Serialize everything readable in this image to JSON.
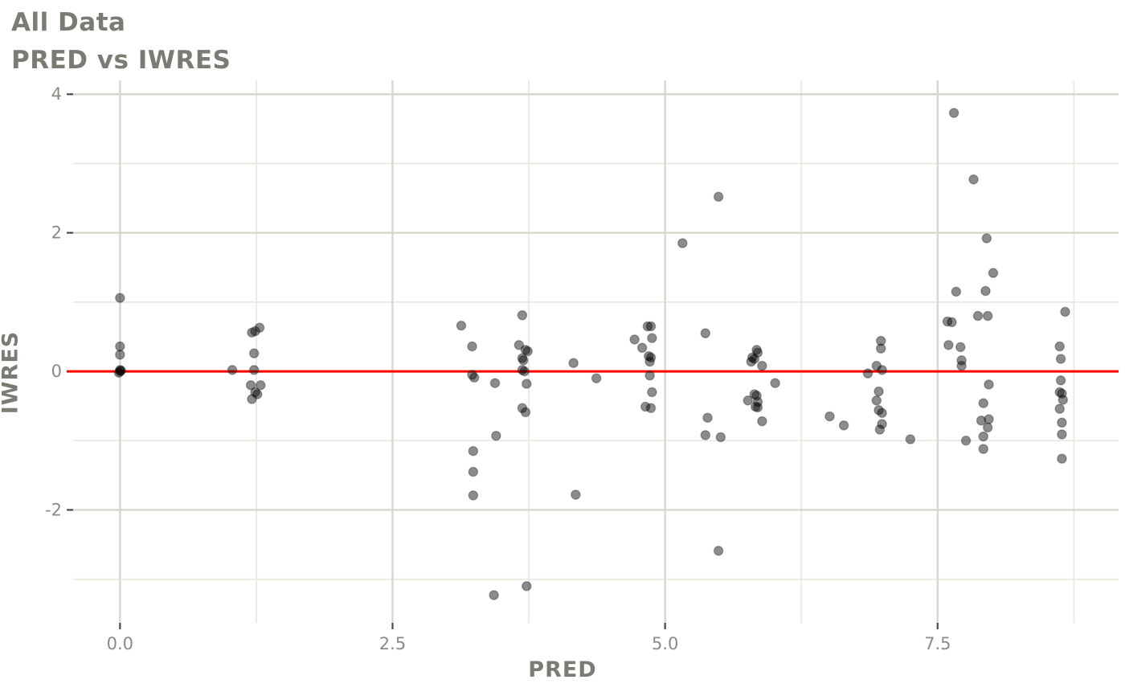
{
  "header": {
    "title": "All Data",
    "subtitle": "PRED vs IWRES"
  },
  "chart_data": {
    "type": "scatter",
    "title": "All Data",
    "subtitle": "PRED vs IWRES",
    "xlabel": "PRED",
    "ylabel": "IWRES",
    "legend": "none",
    "grid": true,
    "xlim": [
      -0.43,
      9.16
    ],
    "ylim": [
      -3.63,
      4.2
    ],
    "x_ticks": {
      "values": [
        0,
        2.5,
        5,
        7.5
      ],
      "labels": [
        "0.0",
        "2.5",
        "5.0",
        "7.5"
      ]
    },
    "y_ticks": {
      "values": [
        4,
        2,
        0,
        -2
      ],
      "labels": [
        "4",
        "2",
        "0",
        "-2"
      ]
    },
    "x_minor": [
      1.25,
      3.75,
      6.25,
      8.75
    ],
    "y_minor": [
      3,
      1,
      -1,
      -3
    ],
    "ref_line": {
      "y": 0,
      "color": "#ff0000"
    },
    "colors": {
      "point": "#000000",
      "point_opacity": 0.45,
      "grid_major": "#d7d7cd",
      "grid_minor": "#e9e9e0",
      "tick_mark": "#4a4a45",
      "tick_label": "#8b8b83",
      "title_text": "#7b7b73"
    },
    "points": [
      [
        0.0,
        1.06
      ],
      [
        0.0,
        0.36
      ],
      [
        0.0,
        0.24
      ],
      [
        0.0,
        0.02
      ],
      [
        0.0,
        0.0
      ],
      [
        -0.01,
        -0.02
      ],
      [
        0.01,
        0.01
      ],
      [
        1.03,
        0.02
      ],
      [
        1.28,
        0.63
      ],
      [
        1.21,
        0.56
      ],
      [
        1.24,
        0.58
      ],
      [
        1.23,
        0.26
      ],
      [
        1.23,
        0.02
      ],
      [
        1.2,
        -0.2
      ],
      [
        1.29,
        -0.2
      ],
      [
        1.24,
        -0.3
      ],
      [
        1.26,
        -0.33
      ],
      [
        1.21,
        -0.4
      ],
      [
        3.13,
        0.66
      ],
      [
        3.23,
        0.36
      ],
      [
        3.23,
        -0.05
      ],
      [
        3.25,
        -0.09
      ],
      [
        3.44,
        -0.17
      ],
      [
        3.45,
        -0.93
      ],
      [
        3.24,
        -1.15
      ],
      [
        3.24,
        -1.45
      ],
      [
        3.24,
        -1.79
      ],
      [
        3.43,
        -3.23
      ],
      [
        3.69,
        0.81
      ],
      [
        3.66,
        0.38
      ],
      [
        3.72,
        0.31
      ],
      [
        3.74,
        0.29
      ],
      [
        3.69,
        0.19
      ],
      [
        3.7,
        0.16
      ],
      [
        3.69,
        0.02
      ],
      [
        3.71,
        0.0
      ],
      [
        3.73,
        -0.18
      ],
      [
        3.69,
        -0.53
      ],
      [
        3.72,
        -0.59
      ],
      [
        3.73,
        -3.1
      ],
      [
        4.16,
        0.12
      ],
      [
        4.37,
        -0.1
      ],
      [
        4.18,
        -1.78
      ],
      [
        4.84,
        0.65
      ],
      [
        4.87,
        0.65
      ],
      [
        4.88,
        0.48
      ],
      [
        4.72,
        0.46
      ],
      [
        4.79,
        0.34
      ],
      [
        4.85,
        0.22
      ],
      [
        4.87,
        0.2
      ],
      [
        4.86,
        0.14
      ],
      [
        4.86,
        -0.06
      ],
      [
        4.88,
        -0.3
      ],
      [
        4.82,
        -0.51
      ],
      [
        4.87,
        -0.53
      ],
      [
        5.16,
        1.85
      ],
      [
        5.49,
        2.52
      ],
      [
        5.37,
        0.55
      ],
      [
        5.39,
        -0.67
      ],
      [
        5.37,
        -0.92
      ],
      [
        5.51,
        -0.95
      ],
      [
        5.49,
        -2.59
      ],
      [
        5.84,
        0.31
      ],
      [
        5.85,
        0.27
      ],
      [
        5.8,
        0.2
      ],
      [
        5.82,
        0.18
      ],
      [
        5.79,
        0.14
      ],
      [
        5.89,
        0.08
      ],
      [
        6.01,
        -0.17
      ],
      [
        5.76,
        -0.42
      ],
      [
        5.82,
        -0.33
      ],
      [
        5.84,
        -0.35
      ],
      [
        5.85,
        -0.44
      ],
      [
        5.83,
        -0.51
      ],
      [
        5.85,
        -0.52
      ],
      [
        5.89,
        -0.72
      ],
      [
        6.51,
        -0.65
      ],
      [
        6.64,
        -0.78
      ],
      [
        6.98,
        0.44
      ],
      [
        6.98,
        0.33
      ],
      [
        6.94,
        0.08
      ],
      [
        6.99,
        0.02
      ],
      [
        6.86,
        -0.03
      ],
      [
        6.96,
        -0.29
      ],
      [
        6.94,
        -0.42
      ],
      [
        6.96,
        -0.56
      ],
      [
        6.99,
        -0.6
      ],
      [
        6.99,
        -0.76
      ],
      [
        6.97,
        -0.84
      ],
      [
        7.25,
        -0.98
      ],
      [
        7.65,
        3.73
      ],
      [
        7.83,
        2.77
      ],
      [
        7.95,
        1.92
      ],
      [
        8.01,
        1.42
      ],
      [
        7.67,
        1.15
      ],
      [
        7.94,
        1.16
      ],
      [
        7.87,
        0.8
      ],
      [
        7.96,
        0.8
      ],
      [
        7.59,
        0.72
      ],
      [
        7.63,
        0.71
      ],
      [
        7.6,
        0.38
      ],
      [
        7.71,
        0.35
      ],
      [
        7.72,
        0.16
      ],
      [
        7.72,
        0.08
      ],
      [
        7.97,
        -0.19
      ],
      [
        7.92,
        -0.46
      ],
      [
        7.9,
        -0.71
      ],
      [
        7.97,
        -0.69
      ],
      [
        7.96,
        -0.81
      ],
      [
        7.92,
        -0.94
      ],
      [
        7.76,
        -1.0
      ],
      [
        7.92,
        -1.12
      ],
      [
        8.67,
        0.86
      ],
      [
        8.62,
        0.36
      ],
      [
        8.63,
        0.18
      ],
      [
        8.63,
        -0.13
      ],
      [
        8.62,
        -0.3
      ],
      [
        8.64,
        -0.32
      ],
      [
        8.65,
        -0.41
      ],
      [
        8.62,
        -0.54
      ],
      [
        8.64,
        -0.74
      ],
      [
        8.64,
        -0.91
      ],
      [
        8.64,
        -1.26
      ]
    ]
  }
}
